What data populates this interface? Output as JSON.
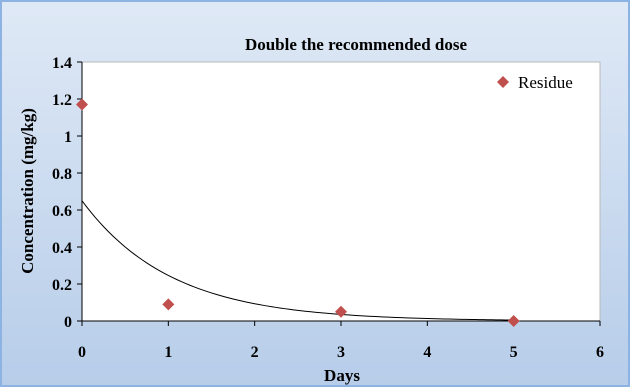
{
  "chart_data": {
    "type": "scatter",
    "title": "Double the recommended dose",
    "xlabel": "Days",
    "ylabel": "Concentration (mg/kg)",
    "xlim": [
      0,
      6
    ],
    "ylim": [
      0,
      1.4
    ],
    "x_ticks": [
      "0",
      "1",
      "2",
      "3",
      "4",
      "5",
      "6"
    ],
    "y_ticks": [
      "0",
      "0.2",
      "0.4",
      "0.6",
      "0.8",
      "1",
      "1.2",
      "1.4"
    ],
    "grid": false,
    "legend_position": "top-right",
    "series": [
      {
        "name": "Residue",
        "marker": "diamond",
        "color": "#c0504d",
        "points": [
          {
            "x": 0,
            "y": 1.17
          },
          {
            "x": 1,
            "y": 0.09
          },
          {
            "x": 3,
            "y": 0.05
          },
          {
            "x": 5,
            "y": 0.0
          }
        ]
      }
    ],
    "trendline": {
      "type": "exponential",
      "color": "#000000",
      "x_start": 0,
      "x_end": 5,
      "a": 0.65,
      "b": -0.97
    }
  }
}
